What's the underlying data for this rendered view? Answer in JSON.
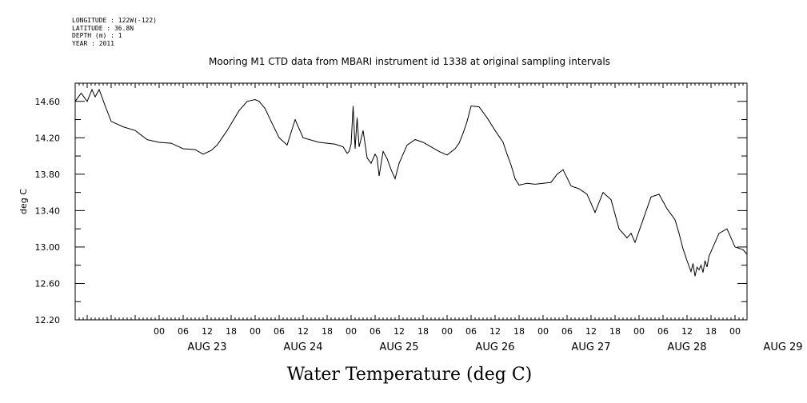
{
  "header": {
    "lines": [
      "LONGITUDE : 122W(-122)",
      "LATITUDE : 36.8N",
      "DEPTH (m) : 1",
      "YEAR : 2011"
    ]
  },
  "chart_data": {
    "type": "line",
    "title": "Mooring M1 CTD data from MBARI instrument id 1338 at original sampling intervals",
    "xlabel": "Water Temperature (deg C)",
    "ylabel": "deg C",
    "ylim": [
      12.2,
      14.8
    ],
    "y_ticks": [
      "12.20",
      "12.60",
      "13.00",
      "13.40",
      "13.80",
      "14.20",
      "14.60"
    ],
    "x_start_hour": -21,
    "x_end_hour": 147,
    "hour_tick_labels": [
      "00",
      "06",
      "12",
      "18"
    ],
    "day_labels": [
      "AUG 23",
      "AUG 24",
      "AUG 25",
      "AUG 26",
      "AUG 27",
      "AUG 28",
      "AUG 29"
    ],
    "grid": false,
    "series": [
      {
        "x": [
          -21.0,
          -19.5,
          -18.0,
          -16.8,
          -16.0,
          -15.0,
          -13.5,
          -12.0,
          -9.0,
          -6.0,
          -3.0,
          0.0,
          3.0,
          6.0,
          9.0,
          11.0,
          13.0,
          14.5,
          17.0,
          20.0,
          22.0,
          24.0,
          25.0,
          26.5,
          28.0,
          30.0,
          32.0,
          34.0,
          36.0,
          40.0,
          44.0,
          46.0,
          47.0,
          47.5,
          48.0,
          48.5,
          49.0,
          49.5,
          50.0,
          51.0,
          52.0,
          53.0,
          54.0,
          54.5,
          55.0,
          56.0,
          57.0,
          58.0,
          59.0,
          60.0,
          62.0,
          64.0,
          66.0,
          68.0,
          70.0,
          72.0,
          74.0,
          75.0,
          76.0,
          77.0,
          78.0,
          80.0,
          82.0,
          84.0,
          86.0,
          87.0,
          88.0,
          89.0,
          90.0,
          92.0,
          94.0,
          96.0,
          98.0,
          99.5,
          101.0,
          103.0,
          105.0,
          107.0,
          109.0,
          111.0,
          113.0,
          115.0,
          117.0,
          118.0,
          119.0,
          121.0,
          123.0,
          125.0,
          127.0,
          129.0,
          130.0,
          131.0,
          132.0,
          133.0,
          133.5,
          134.0,
          134.5,
          135.0,
          135.5,
          136.0,
          136.5,
          137.0,
          137.5,
          138.0,
          139.0,
          140.0,
          142.0,
          144.0,
          146.0,
          147.0
        ],
        "y": [
          14.6,
          14.69,
          14.6,
          14.73,
          14.65,
          14.73,
          14.55,
          14.38,
          14.32,
          14.28,
          14.18,
          14.15,
          14.14,
          14.08,
          14.07,
          14.02,
          14.06,
          14.12,
          14.28,
          14.5,
          14.6,
          14.62,
          14.6,
          14.52,
          14.38,
          14.2,
          14.12,
          14.4,
          14.2,
          14.15,
          14.13,
          14.1,
          14.03,
          14.05,
          14.13,
          14.55,
          14.08,
          14.42,
          14.1,
          14.28,
          13.98,
          13.92,
          14.02,
          13.98,
          13.78,
          14.05,
          13.97,
          13.85,
          13.75,
          13.92,
          14.12,
          14.18,
          14.15,
          14.1,
          14.05,
          14.01,
          14.08,
          14.14,
          14.25,
          14.38,
          14.55,
          14.54,
          14.42,
          14.28,
          14.15,
          14.02,
          13.9,
          13.75,
          13.68,
          13.7,
          13.69,
          13.7,
          13.71,
          13.8,
          13.85,
          13.67,
          13.64,
          13.58,
          13.38,
          13.6,
          13.52,
          13.2,
          13.1,
          13.15,
          13.05,
          13.3,
          13.55,
          13.58,
          13.42,
          13.3,
          13.15,
          12.98,
          12.85,
          12.73,
          12.82,
          12.68,
          12.78,
          12.75,
          12.8,
          12.72,
          12.85,
          12.78,
          12.9,
          12.95,
          13.05,
          13.15,
          13.2,
          13.0,
          12.97,
          12.92
        ]
      }
    ]
  }
}
